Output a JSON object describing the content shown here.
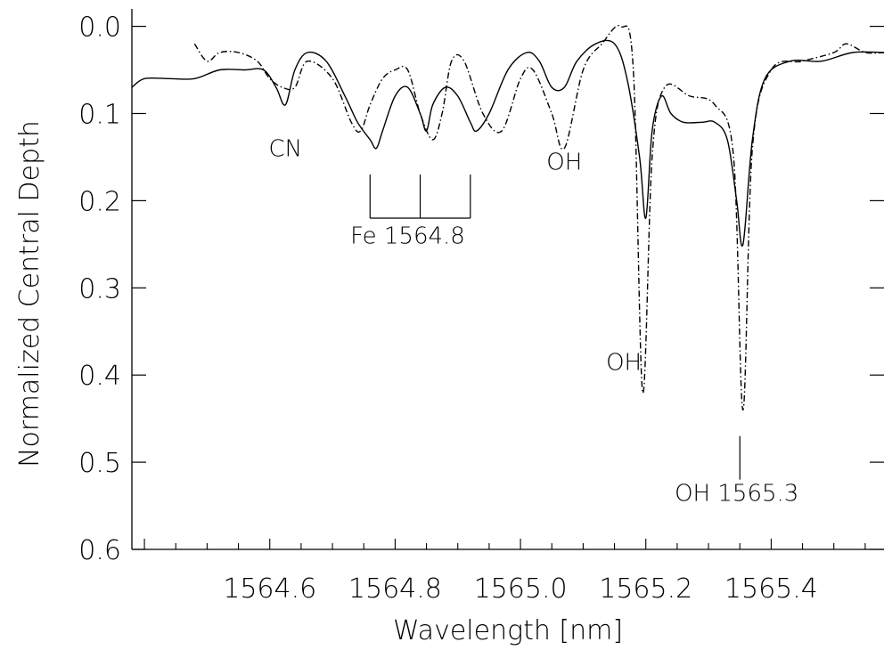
{
  "chart_data": {
    "type": "line",
    "title": "",
    "xlabel": "Wavelength [nm]",
    "ylabel": "Normalized Central Depth",
    "xlim": [
      1564.38,
      1565.58
    ],
    "ylim": [
      0.6,
      -0.02
    ],
    "y_inverted": true,
    "x_ticks": [
      "1564.6",
      "1564.8",
      "1565.0",
      "1565.2",
      "1565.4"
    ],
    "x_tick_values": [
      1564.6,
      1564.8,
      1565.0,
      1565.2,
      1565.4
    ],
    "y_ticks": [
      "0.0",
      "0.1",
      "0.2",
      "0.3",
      "0.4",
      "0.5",
      "0.6"
    ],
    "y_tick_values": [
      0.0,
      0.1,
      0.2,
      0.3,
      0.4,
      0.5,
      0.6
    ],
    "grid": false,
    "series": [
      {
        "style": "solid",
        "x": [
          1564.38,
          1564.4,
          1564.44,
          1564.48,
          1564.52,
          1564.56,
          1564.59,
          1564.61,
          1564.625,
          1564.64,
          1564.66,
          1564.69,
          1564.72,
          1564.74,
          1564.76,
          1564.77,
          1564.78,
          1564.8,
          1564.82,
          1564.84,
          1564.85,
          1564.86,
          1564.88,
          1564.9,
          1564.92,
          1564.93,
          1564.95,
          1564.98,
          1565.01,
          1565.03,
          1565.05,
          1565.07,
          1565.09,
          1565.12,
          1565.15,
          1565.17,
          1565.19,
          1565.2,
          1565.21,
          1565.225,
          1565.24,
          1565.26,
          1565.29,
          1565.31,
          1565.33,
          1565.345,
          1565.355,
          1565.37,
          1565.39,
          1565.43,
          1565.48,
          1565.53,
          1565.58
        ],
        "y": [
          0.07,
          0.06,
          0.06,
          0.06,
          0.05,
          0.05,
          0.05,
          0.07,
          0.09,
          0.05,
          0.03,
          0.04,
          0.08,
          0.11,
          0.13,
          0.14,
          0.12,
          0.08,
          0.07,
          0.1,
          0.12,
          0.09,
          0.07,
          0.08,
          0.11,
          0.12,
          0.1,
          0.05,
          0.03,
          0.04,
          0.07,
          0.07,
          0.04,
          0.02,
          0.02,
          0.06,
          0.15,
          0.22,
          0.12,
          0.08,
          0.1,
          0.11,
          0.11,
          0.11,
          0.13,
          0.2,
          0.25,
          0.13,
          0.06,
          0.04,
          0.04,
          0.03,
          0.03
        ]
      },
      {
        "style": "dash-dot",
        "x": [
          1564.48,
          1564.5,
          1564.52,
          1564.55,
          1564.58,
          1564.6,
          1564.62,
          1564.64,
          1564.66,
          1564.7,
          1564.73,
          1564.745,
          1564.76,
          1564.78,
          1564.8,
          1564.82,
          1564.84,
          1564.86,
          1564.875,
          1564.89,
          1564.91,
          1564.94,
          1564.97,
          1565.0,
          1565.02,
          1565.05,
          1565.07,
          1565.1,
          1565.13,
          1565.16,
          1565.18,
          1565.195,
          1565.21,
          1565.23,
          1565.27,
          1565.31,
          1565.34,
          1565.355,
          1565.37,
          1565.4,
          1565.45,
          1565.5,
          1565.52,
          1565.55,
          1565.58
        ],
        "y": [
          0.02,
          0.04,
          0.03,
          0.03,
          0.04,
          0.06,
          0.07,
          0.07,
          0.04,
          0.06,
          0.11,
          0.12,
          0.09,
          0.06,
          0.05,
          0.05,
          0.1,
          0.13,
          0.1,
          0.04,
          0.04,
          0.1,
          0.12,
          0.06,
          0.05,
          0.1,
          0.14,
          0.05,
          0.02,
          0.0,
          0.05,
          0.42,
          0.15,
          0.07,
          0.08,
          0.09,
          0.15,
          0.44,
          0.14,
          0.05,
          0.04,
          0.03,
          0.02,
          0.03,
          0.03
        ]
      }
    ],
    "annotations": [
      {
        "text": "CN",
        "x": 1564.625,
        "y": 0.14
      },
      {
        "text": "Fe 1564.8",
        "x": 1564.82,
        "y": 0.24
      },
      {
        "text": "OH",
        "x": 1565.07,
        "y": 0.155
      },
      {
        "text": "OH",
        "x": 1565.165,
        "y": 0.385
      },
      {
        "text": "OH 1565.3",
        "x": 1565.345,
        "y": 0.535
      }
    ],
    "markers": {
      "fe_bracket": {
        "x": [
          1564.76,
          1564.84,
          1564.92
        ],
        "y_top": 0.17,
        "y_bottom": 0.22
      },
      "oh_line": {
        "x": 1565.35,
        "y_top": 0.47,
        "y_bottom": 0.52
      }
    }
  }
}
